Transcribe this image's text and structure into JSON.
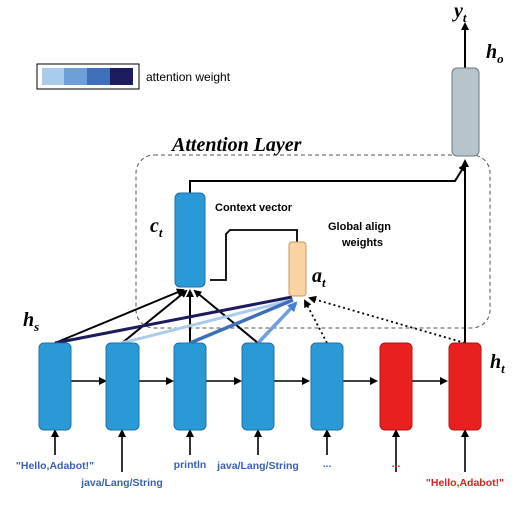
{
  "legend": {
    "label": "attention weight",
    "swatches": [
      "#a9cbee",
      "#6f9fd8",
      "#3f6fb8",
      "#1c1b5e"
    ]
  },
  "layer_title": "Attention Layer",
  "labels": {
    "context_vector": "Context vector",
    "global_align_line1": "Global align",
    "global_align_line2": "weights"
  },
  "math": {
    "y": "y",
    "y_sub": "t",
    "ho": "h",
    "ho_sub": "o",
    "ct": "c",
    "ct_sub": "t",
    "at": "a",
    "at_sub": "t",
    "hs": "h",
    "hs_sub": "s",
    "ht": "h",
    "ht_sub": "t"
  },
  "inputs": [
    {
      "text": "\"Hello,Adabot!\"",
      "color": "#3a5fb0"
    },
    {
      "text": "java/Lang/String",
      "color": "#3a5fb0"
    },
    {
      "text": "println",
      "color": "#3a5fb0"
    },
    {
      "text": "java/Lang/String",
      "color": "#3a5fb0"
    },
    {
      "text": "...",
      "color": "#3a5fb0"
    },
    {
      "text": "...",
      "color": "#e02020"
    },
    {
      "text": "\"Hello,Adabot!\"",
      "color": "#e02020"
    }
  ],
  "colors": {
    "encoder": "#2a9ad6",
    "decoder": "#e82020",
    "attention": "#f9d3a4",
    "output": "#b8c4cc"
  }
}
